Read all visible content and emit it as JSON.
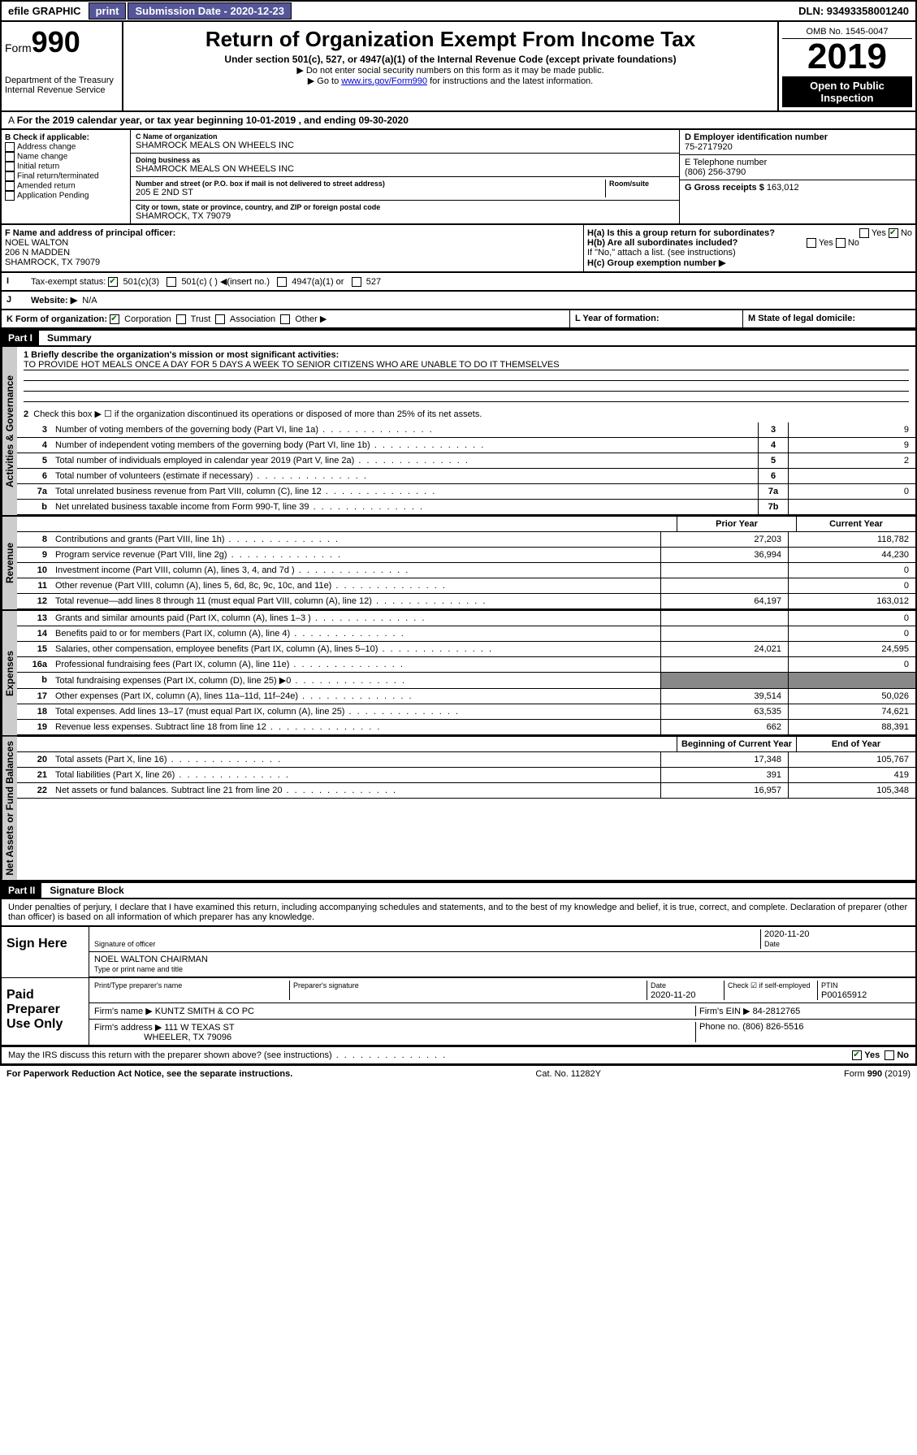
{
  "top": {
    "efile": "efile GRAPHIC",
    "print": "print",
    "sub_label": "Submission Date - 2020-12-23",
    "dln": "DLN: 93493358001240"
  },
  "header": {
    "form": "Form",
    "num": "990",
    "dept": "Department of the Treasury Internal Revenue Service",
    "title": "Return of Organization Exempt From Income Tax",
    "subtitle": "Under section 501(c), 527, or 4947(a)(1) of the Internal Revenue Code (except private foundations)",
    "note1": "▶ Do not enter social security numbers on this form as it may be made public.",
    "note2": "▶ Go to www.irs.gov/Form990 for instructions and the latest information.",
    "note2_link": "www.irs.gov/Form990",
    "omb": "OMB No. 1545-0047",
    "year": "2019",
    "open": "Open to Public Inspection"
  },
  "period": "For the 2019 calendar year, or tax year beginning 10-01-2019    , and ending 09-30-2020",
  "boxB": {
    "label": "B Check if applicable:",
    "opts": [
      "Address change",
      "Name change",
      "Initial return",
      "Final return/terminated",
      "Amended return",
      "Application Pending"
    ]
  },
  "boxC": {
    "name_lbl": "C Name of organization",
    "name": "SHAMROCK MEALS ON WHEELS INC",
    "dba_lbl": "Doing business as",
    "dba": "SHAMROCK MEALS ON WHEELS INC",
    "addr_lbl": "Number and street (or P.O. box if mail is not delivered to street address)",
    "room_lbl": "Room/suite",
    "addr": "205 E 2ND ST",
    "city_lbl": "City or town, state or province, country, and ZIP or foreign postal code",
    "city": "SHAMROCK, TX  79079"
  },
  "boxD": {
    "lbl": "D Employer identification number",
    "val": "75-2717920"
  },
  "boxE": {
    "lbl": "E Telephone number",
    "val": "(806) 256-3790"
  },
  "boxG": {
    "lbl": "G Gross receipts $",
    "val": "163,012"
  },
  "boxF": {
    "lbl": "F  Name and address of principal officer:",
    "name": "NOEL WALTON",
    "street": "206 N MADDEN",
    "city": "SHAMROCK, TX  79079"
  },
  "boxH": {
    "a": "H(a)  Is this a group return for subordinates?",
    "b": "H(b)  Are all subordinates included?",
    "note": "If \"No,\" attach a list. (see instructions)",
    "c": "H(c)  Group exemption number ▶",
    "yes": "Yes",
    "no": "No"
  },
  "boxI": {
    "lbl": "Tax-exempt status:",
    "opts": [
      "501(c)(3)",
      "501(c) (  ) ◀(insert no.)",
      "4947(a)(1) or",
      "527"
    ]
  },
  "boxJ": {
    "lbl": "Website: ▶",
    "val": "N/A"
  },
  "boxK": {
    "lbl": "K Form of organization:",
    "opts": [
      "Corporation",
      "Trust",
      "Association",
      "Other ▶"
    ]
  },
  "boxL": {
    "lbl": "L Year of formation:"
  },
  "boxM": {
    "lbl": "M State of legal domicile:"
  },
  "part1": {
    "hdr": "Part I",
    "title": "Summary"
  },
  "summary": {
    "l1_lbl": "1  Briefly describe the organization's mission or most significant activities:",
    "l1_val": "TO PROVIDE HOT MEALS ONCE A DAY FOR 5 DAYS A WEEK TO SENIOR CITIZENS WHO ARE UNABLE TO DO IT THEMSELVES",
    "l2": "Check this box ▶ ☐  if the organization discontinued its operations or disposed of more than 25% of its net assets.",
    "lines": [
      {
        "n": "3",
        "t": "Number of voting members of the governing body (Part VI, line 1a)",
        "b": "3",
        "v": "9"
      },
      {
        "n": "4",
        "t": "Number of independent voting members of the governing body (Part VI, line 1b)",
        "b": "4",
        "v": "9"
      },
      {
        "n": "5",
        "t": "Total number of individuals employed in calendar year 2019 (Part V, line 2a)",
        "b": "5",
        "v": "2"
      },
      {
        "n": "6",
        "t": "Total number of volunteers (estimate if necessary)",
        "b": "6",
        "v": ""
      },
      {
        "n": "7a",
        "t": "Total unrelated business revenue from Part VIII, column (C), line 12",
        "b": "7a",
        "v": "0"
      },
      {
        "n": "b",
        "t": "Net unrelated business taxable income from Form 990-T, line 39",
        "b": "7b",
        "v": ""
      }
    ],
    "col_hdrs": {
      "prior": "Prior Year",
      "current": "Current Year"
    },
    "rev": [
      {
        "n": "8",
        "t": "Contributions and grants (Part VIII, line 1h)",
        "p": "27,203",
        "c": "118,782"
      },
      {
        "n": "9",
        "t": "Program service revenue (Part VIII, line 2g)",
        "p": "36,994",
        "c": "44,230"
      },
      {
        "n": "10",
        "t": "Investment income (Part VIII, column (A), lines 3, 4, and 7d )",
        "p": "",
        "c": "0"
      },
      {
        "n": "11",
        "t": "Other revenue (Part VIII, column (A), lines 5, 6d, 8c, 9c, 10c, and 11e)",
        "p": "",
        "c": "0"
      },
      {
        "n": "12",
        "t": "Total revenue—add lines 8 through 11 (must equal Part VIII, column (A), line 12)",
        "p": "64,197",
        "c": "163,012"
      }
    ],
    "exp": [
      {
        "n": "13",
        "t": "Grants and similar amounts paid (Part IX, column (A), lines 1–3 )",
        "p": "",
        "c": "0"
      },
      {
        "n": "14",
        "t": "Benefits paid to or for members (Part IX, column (A), line 4)",
        "p": "",
        "c": "0"
      },
      {
        "n": "15",
        "t": "Salaries, other compensation, employee benefits (Part IX, column (A), lines 5–10)",
        "p": "24,021",
        "c": "24,595"
      },
      {
        "n": "16a",
        "t": "Professional fundraising fees (Part IX, column (A), line 11e)",
        "p": "",
        "c": "0"
      },
      {
        "n": "b",
        "t": "Total fundraising expenses (Part IX, column (D), line 25) ▶0",
        "p": "—",
        "c": "—"
      },
      {
        "n": "17",
        "t": "Other expenses (Part IX, column (A), lines 11a–11d, 11f–24e)",
        "p": "39,514",
        "c": "50,026"
      },
      {
        "n": "18",
        "t": "Total expenses. Add lines 13–17 (must equal Part IX, column (A), line 25)",
        "p": "63,535",
        "c": "74,621"
      },
      {
        "n": "19",
        "t": "Revenue less expenses. Subtract line 18 from line 12",
        "p": "662",
        "c": "88,391"
      }
    ],
    "na_hdrs": {
      "beg": "Beginning of Current Year",
      "end": "End of Year"
    },
    "na": [
      {
        "n": "20",
        "t": "Total assets (Part X, line 16)",
        "p": "17,348",
        "c": "105,767"
      },
      {
        "n": "21",
        "t": "Total liabilities (Part X, line 26)",
        "p": "391",
        "c": "419"
      },
      {
        "n": "22",
        "t": "Net assets or fund balances. Subtract line 21 from line 20",
        "p": "16,957",
        "c": "105,348"
      }
    ],
    "side_labels": {
      "ag": "Activities & Governance",
      "rev": "Revenue",
      "exp": "Expenses",
      "na": "Net Assets or Fund Balances"
    }
  },
  "part2": {
    "hdr": "Part II",
    "title": "Signature Block"
  },
  "perjury": "Under penalties of perjury, I declare that I have examined this return, including accompanying schedules and statements, and to the best of my knowledge and belief, it is true, correct, and complete. Declaration of preparer (other than officer) is based on all information of which preparer has any knowledge.",
  "sign": {
    "here": "Sign Here",
    "sig_off": "Signature of officer",
    "date": "2020-11-20",
    "date_lbl": "Date",
    "name": "NOEL WALTON CHAIRMAN",
    "name_lbl": "Type or print name and title"
  },
  "paid": {
    "lbl": "Paid Preparer Use Only",
    "prep_name_lbl": "Print/Type preparer's name",
    "prep_sig_lbl": "Preparer's signature",
    "date_lbl": "Date",
    "date": "2020-11-20",
    "check_lbl": "Check ☑ if self-employed",
    "ptin_lbl": "PTIN",
    "ptin": "P00165912",
    "firm_name_lbl": "Firm's name   ▶",
    "firm_name": "KUNTZ SMITH & CO PC",
    "firm_ein_lbl": "Firm's EIN ▶",
    "firm_ein": "84-2812765",
    "firm_addr_lbl": "Firm's address ▶",
    "firm_addr": "111 W TEXAS ST",
    "firm_city": "WHEELER, TX  79096",
    "phone_lbl": "Phone no.",
    "phone": "(806) 826-5516"
  },
  "discuss": "May the IRS discuss this return with the preparer shown above? (see instructions)",
  "footer": {
    "pra": "For Paperwork Reduction Act Notice, see the separate instructions.",
    "cat": "Cat. No. 11282Y",
    "form": "Form 990 (2019)"
  }
}
